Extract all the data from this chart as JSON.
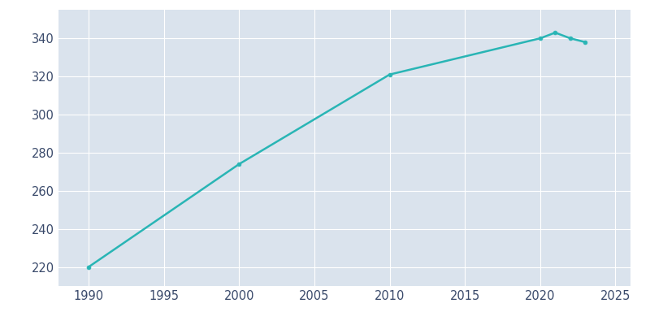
{
  "years": [
    1990,
    2000,
    2010,
    2020,
    2021,
    2022,
    2023
  ],
  "population": [
    220,
    274,
    321,
    340,
    343,
    340,
    338
  ],
  "line_color": "#29b5b5",
  "marker_color": "#29b5b5",
  "plot_bg_color": "#dae3ed",
  "figure_bg_color": "#ffffff",
  "grid_color": "#ffffff",
  "text_color": "#3a4a6b",
  "xlim": [
    1988,
    2026
  ],
  "ylim": [
    210,
    355
  ],
  "xticks": [
    1990,
    1995,
    2000,
    2005,
    2010,
    2015,
    2020,
    2025
  ],
  "yticks": [
    220,
    240,
    260,
    280,
    300,
    320,
    340
  ],
  "figsize": [
    8.0,
    4.0
  ],
  "dpi": 100
}
